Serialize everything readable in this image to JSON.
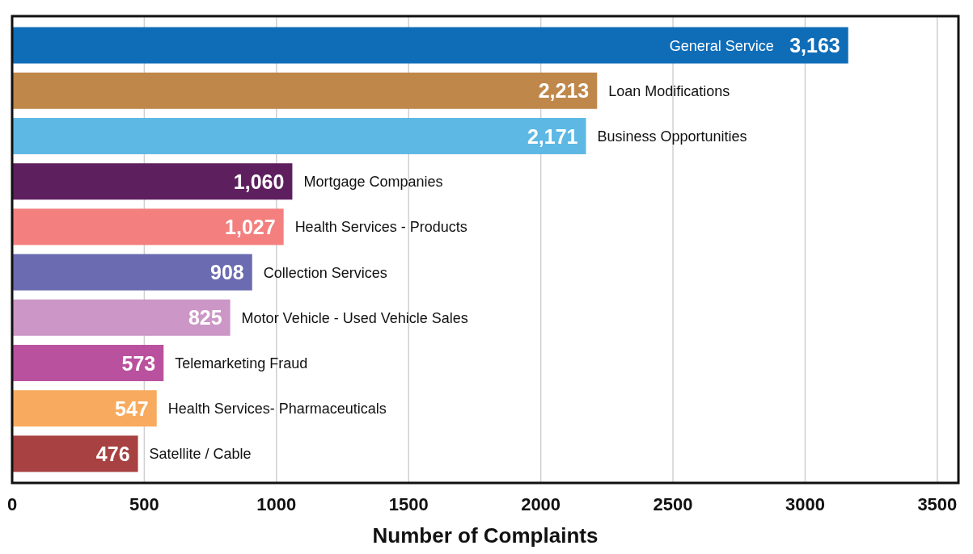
{
  "chart_data": {
    "type": "bar",
    "orientation": "horizontal",
    "xlabel": "Number of Complaints",
    "categories": [
      "General Service",
      "Loan Modifications",
      "Business Opportunities",
      "Mortgage Companies",
      "Health Services - Products",
      "Collection Services",
      "Motor Vehicle - Used Vehicle Sales",
      "Telemarketing Fraud",
      "Health Services- Pharmaceuticals",
      "Satellite / Cable"
    ],
    "values": [
      3163,
      2213,
      2171,
      1060,
      1027,
      908,
      825,
      573,
      547,
      476
    ],
    "colors": [
      "#0f6db8",
      "#bf874a",
      "#5db8e4",
      "#5e1f5e",
      "#f37f7f",
      "#6a6bb0",
      "#cc96c6",
      "#b9519e",
      "#f8ab5e",
      "#a84141"
    ],
    "xlim": [
      0,
      3580
    ],
    "xticks": [
      0,
      500,
      1000,
      1500,
      2000,
      2500,
      3000,
      3500
    ],
    "value_labels": [
      "3,163",
      "2,213",
      "2,171",
      "1,060",
      "1,027",
      "908",
      "825",
      "573",
      "547",
      "476"
    ],
    "grid": "x"
  }
}
